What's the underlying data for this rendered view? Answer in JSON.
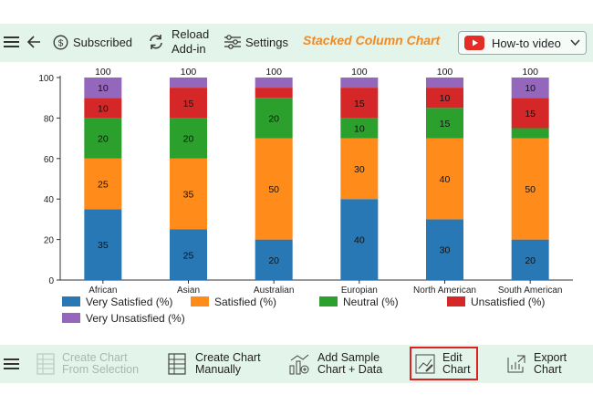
{
  "toolbar": {
    "subscribed_label": "Subscribed",
    "reload_label_1": "Reload",
    "reload_label_2": "Add-in",
    "settings_label": "Settings",
    "chart_title": "Stacked Column Chart",
    "howto_label": "How-to video"
  },
  "bottom_toolbar": {
    "create_from_selection_1": "Create Chart",
    "create_from_selection_2": "From Selection",
    "create_manually_1": "Create Chart",
    "create_manually_2": "Manually",
    "add_sample_1": "Add Sample",
    "add_sample_2": "Chart + Data",
    "edit_chart_1": "Edit",
    "edit_chart_2": "Chart",
    "export_chart_1": "Export",
    "export_chart_2": "Chart"
  },
  "colors": {
    "accent_orange": "#f08a24",
    "toolbar_bg": "#e3f4ea",
    "highlight_red": "#e02020"
  },
  "chart_data": {
    "type": "bar",
    "stacked": true,
    "categories": [
      "African",
      "Asian",
      "Australian",
      "Europian",
      "North American",
      "South American"
    ],
    "series": [
      {
        "name": "Very Satisfied (%)",
        "color": "#2878b5",
        "values": [
          35,
          25,
          20,
          40,
          30,
          20
        ]
      },
      {
        "name": "Satisfied (%)",
        "color": "#ff8c1a",
        "values": [
          25,
          35,
          50,
          30,
          40,
          50
        ]
      },
      {
        "name": "Neutral (%)",
        "color": "#2ca02c",
        "values": [
          20,
          20,
          20,
          10,
          15,
          5
        ]
      },
      {
        "name": "Unsatisfied (%)",
        "color": "#d62728",
        "values": [
          10,
          15,
          5,
          15,
          10,
          15
        ]
      },
      {
        "name": "Very Unsatisfied (%)",
        "color": "#9467bd",
        "values": [
          10,
          5,
          5,
          5,
          5,
          10
        ]
      }
    ],
    "segment_labels": [
      [
        "35",
        "25",
        "20",
        "40",
        "30",
        "20"
      ],
      [
        "25",
        "35",
        "50",
        "30",
        "40",
        "50"
      ],
      [
        "20",
        "20",
        "20",
        "10",
        "15",
        ""
      ],
      [
        "10",
        "15",
        "",
        "15",
        "10",
        "15"
      ],
      [
        "10",
        "",
        "",
        "",
        "",
        "10"
      ]
    ],
    "totals": [
      100,
      100,
      100,
      100,
      100,
      100
    ],
    "yticks": [
      0,
      20,
      40,
      60,
      80,
      100
    ],
    "ylim": [
      0,
      100
    ],
    "legend_position": "bottom",
    "grid": false
  }
}
